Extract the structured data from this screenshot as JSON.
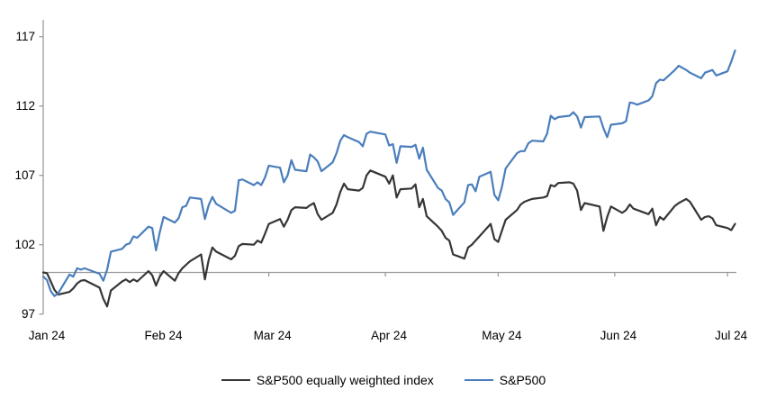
{
  "chart_data": {
    "type": "line",
    "title": "",
    "xlabel": "",
    "ylabel": "",
    "grid": "off",
    "legend_position": "bottom-center",
    "reference_line_value": 100,
    "y_axis": {
      "ticks": [
        97,
        102,
        107,
        112,
        117
      ],
      "min": 97,
      "max": 118.3
    },
    "x_axis": {
      "tick_labels": [
        "Jan 24",
        "Feb 24",
        "Mar 24",
        "Apr 24",
        "May 24",
        "Jun 24",
        "Jul 24"
      ],
      "tick_days": [
        0,
        31,
        60,
        91,
        121,
        152,
        182
      ],
      "total_days": 184
    },
    "series": [
      {
        "name": "S&P500 equally weighted index",
        "color": "#363636",
        "points": [
          [
            0,
            100.0
          ],
          [
            1,
            99.95
          ],
          [
            2,
            99.35
          ],
          [
            3,
            98.75
          ],
          [
            4,
            98.4
          ],
          [
            7,
            98.6
          ],
          [
            8,
            98.85
          ],
          [
            9,
            99.2
          ],
          [
            10,
            99.4
          ],
          [
            11,
            99.45
          ],
          [
            15,
            98.9
          ],
          [
            16,
            98.1
          ],
          [
            17,
            97.55
          ],
          [
            18,
            98.7
          ],
          [
            21,
            99.35
          ],
          [
            22,
            99.5
          ],
          [
            23,
            99.3
          ],
          [
            24,
            99.5
          ],
          [
            25,
            99.35
          ],
          [
            28,
            100.1
          ],
          [
            29,
            99.8
          ],
          [
            30,
            99.05
          ],
          [
            31,
            99.7
          ],
          [
            32,
            100.1
          ],
          [
            35,
            99.4
          ],
          [
            36,
            99.95
          ],
          [
            37,
            100.3
          ],
          [
            38,
            100.55
          ],
          [
            39,
            100.8
          ],
          [
            42,
            101.3
          ],
          [
            43,
            99.5
          ],
          [
            44,
            100.9
          ],
          [
            45,
            101.8
          ],
          [
            46,
            101.5
          ],
          [
            50,
            100.95
          ],
          [
            51,
            101.2
          ],
          [
            52,
            101.9
          ],
          [
            53,
            102.05
          ],
          [
            56,
            102.0
          ],
          [
            57,
            102.3
          ],
          [
            58,
            102.15
          ],
          [
            59,
            102.8
          ],
          [
            60,
            103.5
          ],
          [
            63,
            103.85
          ],
          [
            64,
            103.3
          ],
          [
            65,
            103.8
          ],
          [
            66,
            104.5
          ],
          [
            67,
            104.7
          ],
          [
            70,
            104.65
          ],
          [
            71,
            104.85
          ],
          [
            72,
            105.0
          ],
          [
            73,
            104.2
          ],
          [
            74,
            103.8
          ],
          [
            77,
            104.3
          ],
          [
            78,
            104.9
          ],
          [
            79,
            105.8
          ],
          [
            80,
            106.4
          ],
          [
            81,
            106.0
          ],
          [
            84,
            105.9
          ],
          [
            85,
            106.1
          ],
          [
            86,
            107.0
          ],
          [
            87,
            107.35
          ],
          [
            91,
            106.9
          ],
          [
            92,
            106.4
          ],
          [
            93,
            107.0
          ],
          [
            94,
            105.4
          ],
          [
            95,
            106.0
          ],
          [
            98,
            106.05
          ],
          [
            99,
            106.35
          ],
          [
            100,
            104.7
          ],
          [
            101,
            105.3
          ],
          [
            102,
            104.05
          ],
          [
            105,
            103.3
          ],
          [
            106,
            103.0
          ],
          [
            107,
            102.5
          ],
          [
            108,
            102.3
          ],
          [
            109,
            101.3
          ],
          [
            112,
            101.0
          ],
          [
            113,
            101.8
          ],
          [
            114,
            102.0
          ],
          [
            115,
            102.3
          ],
          [
            116,
            102.6
          ],
          [
            119,
            103.5
          ],
          [
            120,
            102.4
          ],
          [
            121,
            102.2
          ],
          [
            122,
            103.0
          ],
          [
            123,
            103.8
          ],
          [
            126,
            104.5
          ],
          [
            127,
            104.9
          ],
          [
            128,
            105.1
          ],
          [
            129,
            105.2
          ],
          [
            130,
            105.3
          ],
          [
            133,
            105.4
          ],
          [
            134,
            105.5
          ],
          [
            135,
            106.3
          ],
          [
            136,
            106.2
          ],
          [
            137,
            106.45
          ],
          [
            140,
            106.5
          ],
          [
            141,
            106.4
          ],
          [
            142,
            105.9
          ],
          [
            143,
            104.5
          ],
          [
            144,
            105.0
          ],
          [
            148,
            104.75
          ],
          [
            149,
            103.0
          ],
          [
            150,
            104.0
          ],
          [
            151,
            104.75
          ],
          [
            154,
            104.3
          ],
          [
            155,
            104.5
          ],
          [
            156,
            104.9
          ],
          [
            157,
            104.6
          ],
          [
            158,
            104.5
          ],
          [
            161,
            104.2
          ],
          [
            162,
            104.6
          ],
          [
            163,
            103.4
          ],
          [
            164,
            104.0
          ],
          [
            165,
            103.8
          ],
          [
            168,
            104.8
          ],
          [
            169,
            105.0
          ],
          [
            171,
            105.3
          ],
          [
            172,
            105.1
          ],
          [
            175,
            103.8
          ],
          [
            176,
            104.0
          ],
          [
            177,
            104.05
          ],
          [
            178,
            103.9
          ],
          [
            179,
            103.4
          ],
          [
            182,
            103.2
          ],
          [
            183,
            103.05
          ],
          [
            184,
            103.5
          ]
        ]
      },
      {
        "name": "S&P500",
        "color": "#4a7ebc",
        "points": [
          [
            0,
            99.7
          ],
          [
            1,
            99.45
          ],
          [
            2,
            98.65
          ],
          [
            3,
            98.3
          ],
          [
            4,
            98.5
          ],
          [
            7,
            99.85
          ],
          [
            8,
            99.7
          ],
          [
            9,
            100.3
          ],
          [
            10,
            100.2
          ],
          [
            11,
            100.3
          ],
          [
            15,
            99.9
          ],
          [
            16,
            99.4
          ],
          [
            17,
            100.2
          ],
          [
            18,
            101.5
          ],
          [
            21,
            101.7
          ],
          [
            22,
            102.0
          ],
          [
            23,
            102.1
          ],
          [
            24,
            102.6
          ],
          [
            25,
            102.5
          ],
          [
            28,
            103.3
          ],
          [
            29,
            103.2
          ],
          [
            30,
            101.6
          ],
          [
            31,
            102.9
          ],
          [
            32,
            104.0
          ],
          [
            35,
            103.6
          ],
          [
            36,
            103.9
          ],
          [
            37,
            104.7
          ],
          [
            38,
            104.8
          ],
          [
            39,
            105.4
          ],
          [
            42,
            105.3
          ],
          [
            43,
            103.85
          ],
          [
            44,
            104.85
          ],
          [
            45,
            105.45
          ],
          [
            46,
            104.95
          ],
          [
            50,
            104.3
          ],
          [
            51,
            104.45
          ],
          [
            52,
            106.65
          ],
          [
            53,
            106.7
          ],
          [
            56,
            106.3
          ],
          [
            57,
            106.5
          ],
          [
            58,
            106.3
          ],
          [
            59,
            106.85
          ],
          [
            60,
            107.7
          ],
          [
            63,
            107.55
          ],
          [
            64,
            106.5
          ],
          [
            65,
            107.0
          ],
          [
            66,
            108.1
          ],
          [
            67,
            107.4
          ],
          [
            70,
            107.3
          ],
          [
            71,
            108.5
          ],
          [
            72,
            108.3
          ],
          [
            73,
            108.0
          ],
          [
            74,
            107.3
          ],
          [
            77,
            107.95
          ],
          [
            78,
            108.6
          ],
          [
            79,
            109.5
          ],
          [
            80,
            109.9
          ],
          [
            81,
            109.75
          ],
          [
            84,
            109.4
          ],
          [
            85,
            109.1
          ],
          [
            86,
            110.0
          ],
          [
            87,
            110.15
          ],
          [
            91,
            109.95
          ],
          [
            92,
            109.15
          ],
          [
            93,
            109.25
          ],
          [
            94,
            107.9
          ],
          [
            95,
            109.1
          ],
          [
            98,
            109.05
          ],
          [
            99,
            109.2
          ],
          [
            100,
            108.2
          ],
          [
            101,
            109.0
          ],
          [
            102,
            107.4
          ],
          [
            105,
            106.1
          ],
          [
            106,
            105.9
          ],
          [
            107,
            105.3
          ],
          [
            108,
            105.05
          ],
          [
            109,
            104.15
          ],
          [
            112,
            105.05
          ],
          [
            113,
            106.3
          ],
          [
            114,
            106.35
          ],
          [
            115,
            105.85
          ],
          [
            116,
            106.9
          ],
          [
            119,
            107.25
          ],
          [
            120,
            105.6
          ],
          [
            121,
            105.2
          ],
          [
            122,
            106.15
          ],
          [
            123,
            107.5
          ],
          [
            126,
            108.6
          ],
          [
            127,
            108.75
          ],
          [
            128,
            108.75
          ],
          [
            129,
            109.3
          ],
          [
            130,
            109.5
          ],
          [
            133,
            109.45
          ],
          [
            134,
            110.0
          ],
          [
            135,
            111.3
          ],
          [
            136,
            111.05
          ],
          [
            137,
            111.2
          ],
          [
            140,
            111.3
          ],
          [
            141,
            111.55
          ],
          [
            142,
            111.25
          ],
          [
            143,
            110.45
          ],
          [
            144,
            111.2
          ],
          [
            148,
            111.25
          ],
          [
            149,
            110.4
          ],
          [
            150,
            109.75
          ],
          [
            151,
            110.65
          ],
          [
            154,
            110.75
          ],
          [
            155,
            110.9
          ],
          [
            156,
            112.25
          ],
          [
            157,
            112.2
          ],
          [
            158,
            112.1
          ],
          [
            161,
            112.4
          ],
          [
            162,
            112.7
          ],
          [
            163,
            113.65
          ],
          [
            164,
            113.9
          ],
          [
            165,
            113.85
          ],
          [
            168,
            114.6
          ],
          [
            169,
            114.9
          ],
          [
            171,
            114.6
          ],
          [
            172,
            114.4
          ],
          [
            175,
            114.0
          ],
          [
            176,
            114.4
          ],
          [
            177,
            114.5
          ],
          [
            178,
            114.6
          ],
          [
            179,
            114.2
          ],
          [
            182,
            114.5
          ],
          [
            183,
            115.2
          ],
          [
            184,
            116.0
          ]
        ]
      }
    ],
    "axis_color": "#9c9c9c"
  }
}
